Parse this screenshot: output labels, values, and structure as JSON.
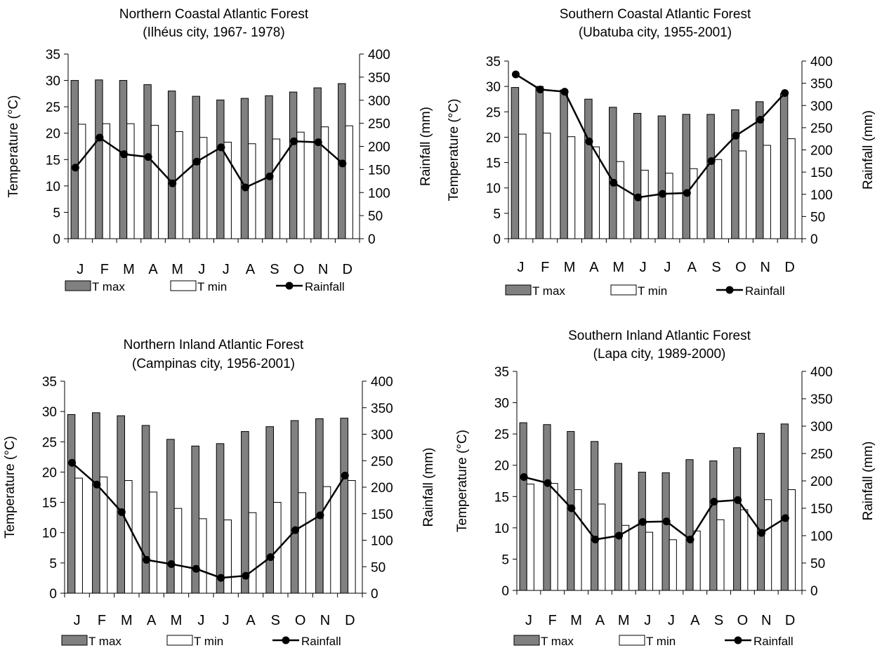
{
  "colors": {
    "tmax_fill": "#808080",
    "tmin_fill": "#ffffff",
    "rain_line": "#000000",
    "axis": "#000000"
  },
  "chart_data": [
    {
      "type": "bar",
      "title": "Northern Coastal Atlantic Forest",
      "subtitle": "(Ilhéus city, 1967- 1978)",
      "categories": [
        "J",
        "F",
        "M",
        "A",
        "M",
        "J",
        "J",
        "A",
        "S",
        "O",
        "N",
        "D"
      ],
      "ylabel": "Temperature (°C)",
      "y2label": "Rainfall (mm)",
      "ylim": [
        0,
        35
      ],
      "y2lim": [
        0,
        400
      ],
      "yticks": [
        "0",
        "5",
        "10",
        "15",
        "20",
        "25",
        "30",
        "35"
      ],
      "y2ticks": [
        "0",
        "50",
        "100",
        "150",
        "200",
        "250",
        "300",
        "350",
        "400"
      ],
      "grid": false,
      "legend_position": "bottom",
      "series": [
        {
          "name": "T max",
          "kind": "bar",
          "axis": "left",
          "values": [
            30.0,
            30.1,
            30.0,
            29.2,
            28.0,
            27.0,
            26.3,
            26.6,
            27.1,
            27.8,
            28.6,
            29.4
          ]
        },
        {
          "name": "T min",
          "kind": "bar",
          "axis": "left",
          "values": [
            21.7,
            21.8,
            21.8,
            21.5,
            20.3,
            19.2,
            18.3,
            18.0,
            18.9,
            20.2,
            21.2,
            21.4
          ]
        },
        {
          "name": "Rainfall",
          "kind": "line",
          "axis": "right",
          "values": [
            154,
            219,
            183,
            177,
            120,
            167,
            198,
            111,
            135,
            211,
            209,
            163
          ]
        }
      ]
    },
    {
      "type": "bar",
      "title": "Southern Coastal Atlantic Forest",
      "subtitle": "(Ubatuba city, 1955-2001)",
      "categories": [
        "J",
        "F",
        "M",
        "A",
        "M",
        "J",
        "J",
        "A",
        "S",
        "O",
        "N",
        "D"
      ],
      "ylabel": "Temperature (°C)",
      "y2label": "Rainfall (mm)",
      "ylim": [
        0,
        35
      ],
      "y2lim": [
        0,
        400
      ],
      "yticks": [
        "0",
        "5",
        "10",
        "15",
        "20",
        "25",
        "30",
        "35"
      ],
      "y2ticks": [
        "0",
        "50",
        "100",
        "150",
        "200",
        "250",
        "300",
        "350",
        "400"
      ],
      "grid": false,
      "legend_position": "bottom",
      "series": [
        {
          "name": "T max",
          "kind": "bar",
          "axis": "left",
          "values": [
            29.8,
            30.0,
            29.3,
            27.5,
            25.9,
            24.7,
            24.2,
            24.5,
            24.5,
            25.4,
            27.0,
            28.6
          ]
        },
        {
          "name": "T min",
          "kind": "bar",
          "axis": "left",
          "values": [
            20.6,
            20.8,
            20.1,
            18.1,
            15.2,
            13.5,
            12.9,
            13.8,
            15.6,
            17.3,
            18.4,
            19.7
          ]
        },
        {
          "name": "Rainfall",
          "kind": "line",
          "axis": "right",
          "values": [
            370,
            336,
            331,
            219,
            126,
            93,
            101,
            103,
            175,
            232,
            268,
            328
          ]
        }
      ]
    },
    {
      "type": "bar",
      "title": "Northern Inland Atlantic Forest",
      "subtitle": "(Campinas city, 1956-2001)",
      "categories": [
        "J",
        "F",
        "M",
        "A",
        "M",
        "J",
        "J",
        "A",
        "S",
        "O",
        "N",
        "D"
      ],
      "ylabel": "Temperature (°C)",
      "y2label": "Rainfall (mm)",
      "ylim": [
        0,
        35
      ],
      "y2lim": [
        0,
        400
      ],
      "yticks": [
        "0",
        "5",
        "10",
        "15",
        "20",
        "25",
        "30",
        "35"
      ],
      "y2ticks": [
        "0",
        "50",
        "100",
        "150",
        "200",
        "250",
        "300",
        "350",
        "400"
      ],
      "grid": false,
      "legend_position": "bottom",
      "series": [
        {
          "name": "T max",
          "kind": "bar",
          "axis": "left",
          "values": [
            29.5,
            29.8,
            29.3,
            27.7,
            25.4,
            24.3,
            24.7,
            26.7,
            27.5,
            28.5,
            28.8,
            28.9
          ]
        },
        {
          "name": "T min",
          "kind": "bar",
          "axis": "left",
          "values": [
            19.0,
            19.2,
            18.6,
            16.7,
            14.0,
            12.3,
            12.1,
            13.3,
            15.0,
            16.6,
            17.6,
            18.6
          ]
        },
        {
          "name": "Rainfall",
          "kind": "line",
          "axis": "right",
          "values": [
            246,
            205,
            153,
            63,
            55,
            46,
            29,
            33,
            68,
            119,
            147,
            222
          ]
        }
      ]
    },
    {
      "type": "bar",
      "title": "Southern Inland Atlantic Forest",
      "subtitle": "(Lapa city, 1989-2000)",
      "categories": [
        "J",
        "F",
        "M",
        "A",
        "M",
        "J",
        "J",
        "A",
        "S",
        "O",
        "N",
        "D"
      ],
      "ylabel": "Temperature (°C)",
      "y2label": "Rainfall (mm)",
      "ylim": [
        0,
        35
      ],
      "y2lim": [
        0,
        400
      ],
      "yticks": [
        "0",
        "5",
        "10",
        "15",
        "20",
        "25",
        "30",
        "35"
      ],
      "y2ticks": [
        "0",
        "50",
        "100",
        "150",
        "200",
        "250",
        "300",
        "350",
        "400"
      ],
      "grid": false,
      "legend_position": "bottom",
      "series": [
        {
          "name": "T max",
          "kind": "bar",
          "axis": "left",
          "values": [
            26.8,
            26.5,
            25.4,
            23.8,
            20.3,
            18.9,
            18.8,
            20.9,
            20.7,
            22.8,
            25.1,
            26.6
          ]
        },
        {
          "name": "T min",
          "kind": "bar",
          "axis": "left",
          "values": [
            17.0,
            17.1,
            16.1,
            13.8,
            10.4,
            9.3,
            8.1,
            9.5,
            11.3,
            12.9,
            14.5,
            16.1
          ]
        },
        {
          "name": "Rainfall",
          "kind": "line",
          "axis": "right",
          "values": [
            207,
            196,
            150,
            93,
            100,
            125,
            126,
            93,
            162,
            165,
            105,
            132
          ]
        }
      ]
    }
  ]
}
